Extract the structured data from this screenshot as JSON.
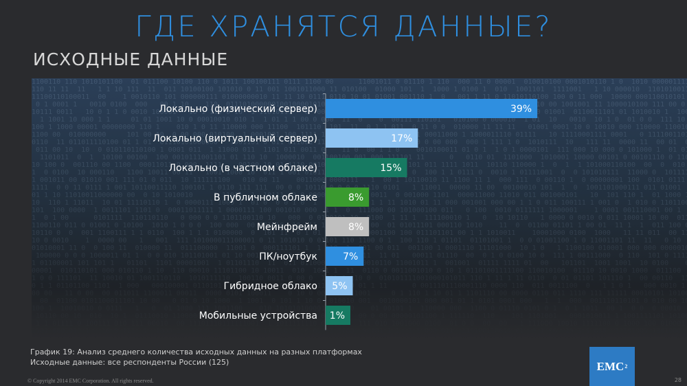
{
  "title": "ГДЕ ХРАНЯТСЯ ДАННЫЕ?",
  "subtitle": "ИСХОДНЫЕ ДАННЫЕ",
  "chart_data": {
    "type": "bar",
    "orientation": "horizontal",
    "categories": [
      "Локально (физический сервер)",
      "Локально (виртуальный сервер)",
      "Локально (в частном облаке)",
      "В публичном облаке",
      "Мейнфрейм",
      "ПК/ноутбук",
      "Гибридное облако",
      "Мобильные устройства"
    ],
    "values": [
      39,
      17,
      15,
      8,
      8,
      7,
      5,
      1
    ],
    "value_labels": [
      "39%",
      "17%",
      "15%",
      "8%",
      "8%",
      "7%",
      "5%",
      "1%"
    ],
    "bar_colors": [
      "#2f8fe0",
      "#8ec3f2",
      "#167a62",
      "#3a9b2f",
      "#bfbfbf",
      "#2f8fe0",
      "#8ec3f2",
      "#167a62"
    ],
    "xlim": [
      0,
      40
    ],
    "grid": false,
    "legend": "none"
  },
  "caption": {
    "line1": "График 19: Анализ среднего количества исходных данных на разных платформах",
    "line2": "Исходные данные: все респонденты России (125)"
  },
  "footer": {
    "copyright": "© Copyright 2014 EMC Corporation. All rights reserved.",
    "page": "28"
  },
  "logo": {
    "text": "EMC",
    "sup": "2"
  }
}
